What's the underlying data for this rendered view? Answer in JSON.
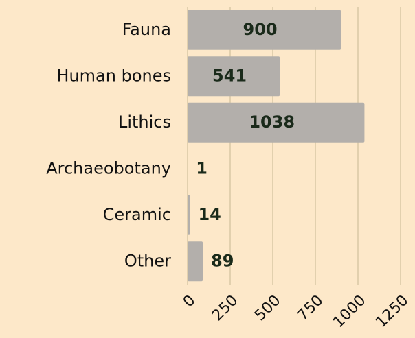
{
  "chart_data": {
    "type": "bar",
    "orientation": "horizontal",
    "categories": [
      "Fauna",
      "Human bones",
      "Lithics",
      "Archaeobotany",
      "Ceramic",
      "Other"
    ],
    "values": [
      900,
      541,
      1038,
      1,
      14,
      89
    ],
    "color": "#b3afab",
    "xlim": [
      0,
      1250
    ],
    "xticks": [
      0,
      250,
      500,
      750,
      1000,
      1250
    ],
    "grid": true
  }
}
